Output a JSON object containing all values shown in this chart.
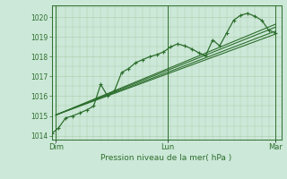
{
  "bg_color": "#cce8d8",
  "grid_color": "#aaccaa",
  "line_color": "#2d6e2d",
  "title": "Pression niveau de la mer( hPa )",
  "xlabel_dim": "Dim",
  "xlabel_lun": "Lun",
  "xlabel_mar": "Mar",
  "ylim": [
    1013.8,
    1020.6
  ],
  "yticks": [
    1014,
    1015,
    1016,
    1017,
    1018,
    1019,
    1020
  ],
  "xlim": [
    0,
    16.4
  ],
  "xtick_positions": [
    0.3,
    8.3,
    16.0
  ],
  "line1_x": [
    0.0,
    0.5,
    1.0,
    1.5,
    2.0,
    2.5,
    3.0,
    3.5,
    4.0,
    4.5,
    5.0,
    5.5,
    6.0,
    6.5,
    7.0,
    7.5,
    8.0,
    8.5,
    9.0,
    9.5,
    10.0,
    10.5,
    11.0,
    11.5,
    12.0,
    12.5,
    13.0,
    13.5,
    14.0,
    14.5,
    15.0,
    15.5,
    16.0
  ],
  "line1_y": [
    1014.1,
    1014.4,
    1014.9,
    1015.0,
    1015.15,
    1015.3,
    1015.5,
    1016.6,
    1016.0,
    1016.3,
    1017.2,
    1017.4,
    1017.7,
    1017.85,
    1018.0,
    1018.1,
    1018.25,
    1018.5,
    1018.65,
    1018.55,
    1018.4,
    1018.2,
    1018.05,
    1018.85,
    1018.55,
    1019.2,
    1019.85,
    1020.1,
    1020.2,
    1020.05,
    1019.85,
    1019.35,
    1019.2
  ],
  "line2_x": [
    0.3,
    16.0
  ],
  "line2_y": [
    1015.05,
    1019.15
  ],
  "line3_x": [
    0.3,
    16.0
  ],
  "line3_y": [
    1015.05,
    1019.3
  ],
  "line4_x": [
    0.3,
    16.0
  ],
  "line4_y": [
    1015.05,
    1019.5
  ],
  "line5_x": [
    0.3,
    16.0
  ],
  "line5_y": [
    1015.05,
    1019.65
  ]
}
